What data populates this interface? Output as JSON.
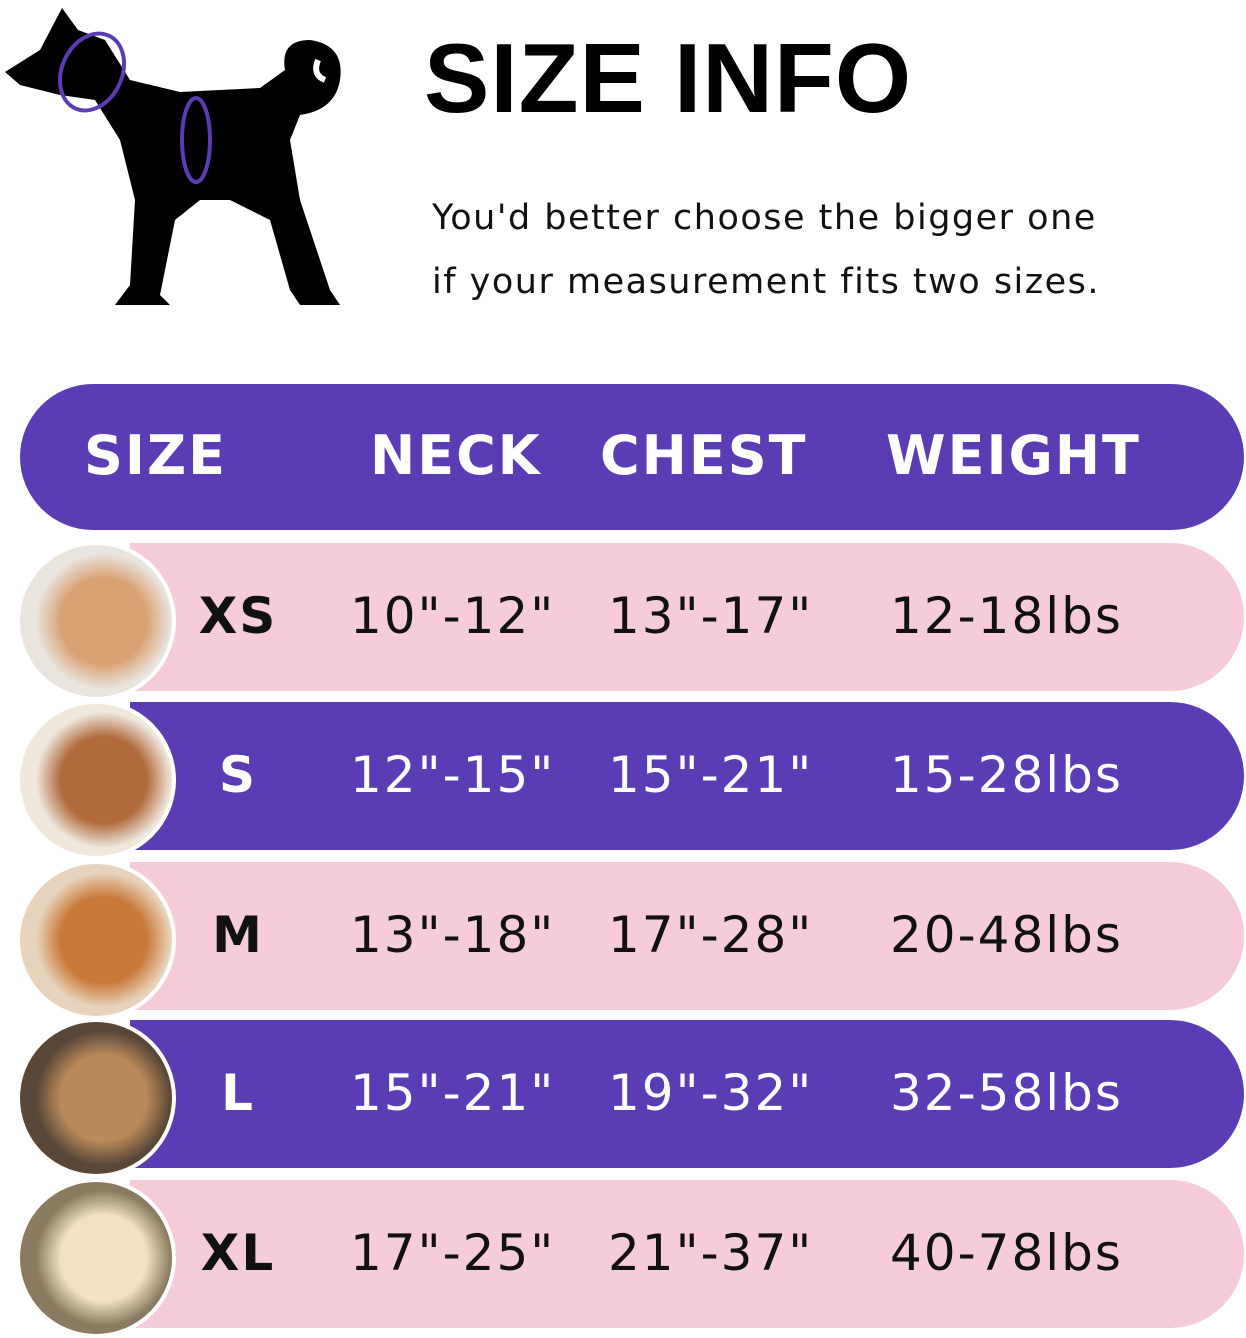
{
  "title": "SIZE INFO",
  "subtitle": [
    "You'd better choose the bigger one",
    "if your measurement fits two sizes."
  ],
  "colors": {
    "purple": "#5a3cb4",
    "pink": "#f6ccd8",
    "text_dark": "#111111",
    "text_light": "#ffffff"
  },
  "header": {
    "size": "SIZE",
    "neck": "NECK",
    "chest": "CHEST",
    "weight": "WEIGHT"
  },
  "rows": [
    {
      "size": "XS",
      "neck": "10\"-12\"",
      "chest": "13\"-17\"",
      "weight": "12-18lbs",
      "style": "pink",
      "dog": "pomeranian"
    },
    {
      "size": "S",
      "neck": "12\"-15\"",
      "chest": "15\"-21\"",
      "weight": "15-28lbs",
      "style": "purple",
      "dog": "poodle"
    },
    {
      "size": "M",
      "neck": "13\"-18\"",
      "chest": "17\"-28\"",
      "weight": "20-48lbs",
      "style": "pink",
      "dog": "shiba-inu"
    },
    {
      "size": "L",
      "neck": "15\"-21\"",
      "chest": "19\"-32\"",
      "weight": "32-58lbs",
      "style": "purple",
      "dog": "french-bulldog"
    },
    {
      "size": "XL",
      "neck": "17\"-25\"",
      "chest": "21\"-37\"",
      "weight": "40-78lbs",
      "style": "pink",
      "dog": "labrador"
    }
  ]
}
